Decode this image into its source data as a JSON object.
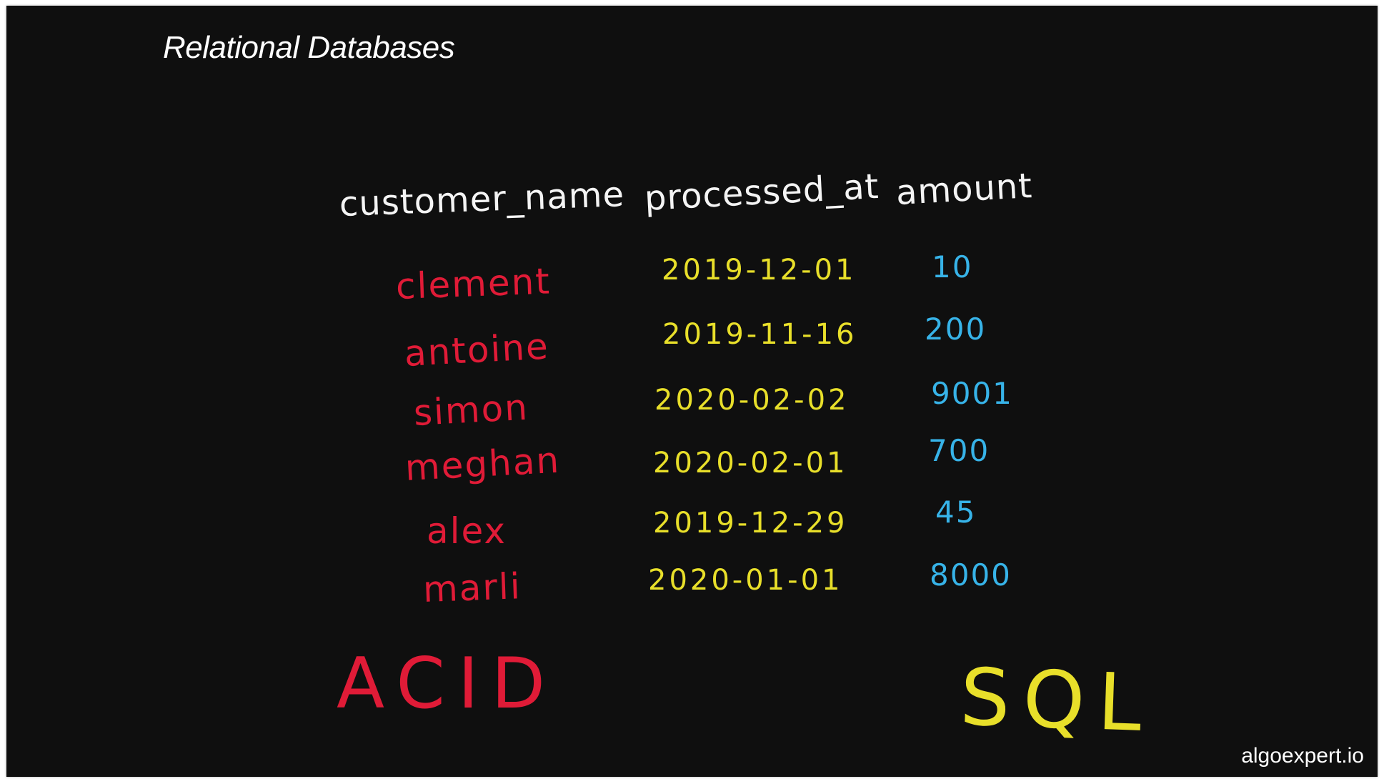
{
  "title": "Relational Databases",
  "table": {
    "headers": [
      "customer_name",
      "processed_at",
      "amount"
    ],
    "rows": [
      {
        "customer_name": "clement",
        "processed_at": "2019-12-01",
        "amount": "10"
      },
      {
        "customer_name": "antoine",
        "processed_at": "2019-11-16",
        "amount": "200"
      },
      {
        "customer_name": "simon",
        "processed_at": "2020-02-02",
        "amount": "9001"
      },
      {
        "customer_name": "meghan",
        "processed_at": "2020-02-01",
        "amount": "700"
      },
      {
        "customer_name": "alex",
        "processed_at": "2019-12-29",
        "amount": "45"
      },
      {
        "customer_name": "marli",
        "processed_at": "2020-01-01",
        "amount": "8000"
      }
    ]
  },
  "annotations": {
    "acid": "ACID",
    "sql": "SQL"
  },
  "brand": "algoexpert.io",
  "colors": {
    "background": "#0f0f0f",
    "header_text": "#f4f4f4",
    "name_text": "#e01b37",
    "date_text": "#e8df2a",
    "amount_text": "#37b3e8"
  }
}
